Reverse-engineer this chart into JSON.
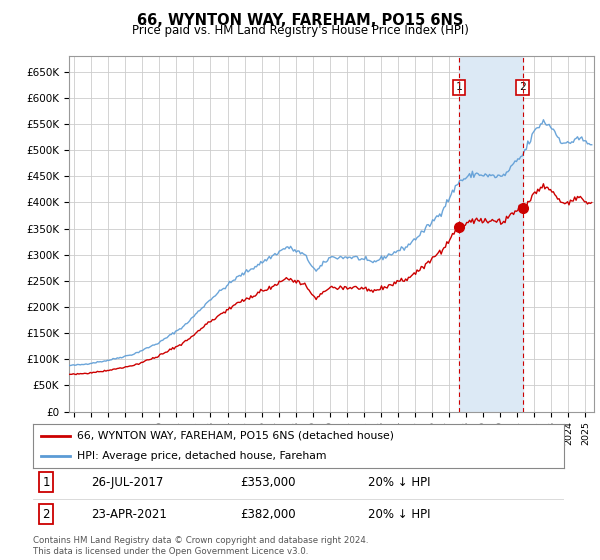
{
  "title": "66, WYNTON WAY, FAREHAM, PO15 6NS",
  "subtitle": "Price paid vs. HM Land Registry's House Price Index (HPI)",
  "legend_label1": "66, WYNTON WAY, FAREHAM, PO15 6NS (detached house)",
  "legend_label2": "HPI: Average price, detached house, Fareham",
  "event1_date": "26-JUL-2017",
  "event1_price": "£353,000",
  "event1_hpi": "20% ↓ HPI",
  "event1_year": 2017.57,
  "event1_value": 353000,
  "event2_date": "23-APR-2021",
  "event2_price": "£382,000",
  "event2_hpi": "20% ↓ HPI",
  "event2_year": 2021.31,
  "event2_value": 382000,
  "footer": "Contains HM Land Registry data © Crown copyright and database right 2024.\nThis data is licensed under the Open Government Licence v3.0.",
  "red_color": "#cc0000",
  "blue_color": "#5b9bd5",
  "shade_color": "#dce9f5",
  "bg_color": "#ffffff",
  "plot_bg": "#ffffff",
  "grid_color": "#cccccc",
  "yticks": [
    0,
    50000,
    100000,
    150000,
    200000,
    250000,
    300000,
    350000,
    400000,
    450000,
    500000,
    550000,
    600000,
    650000
  ],
  "ylim": [
    0,
    680000
  ],
  "xlim_start": 1994.7,
  "xlim_end": 2025.5
}
